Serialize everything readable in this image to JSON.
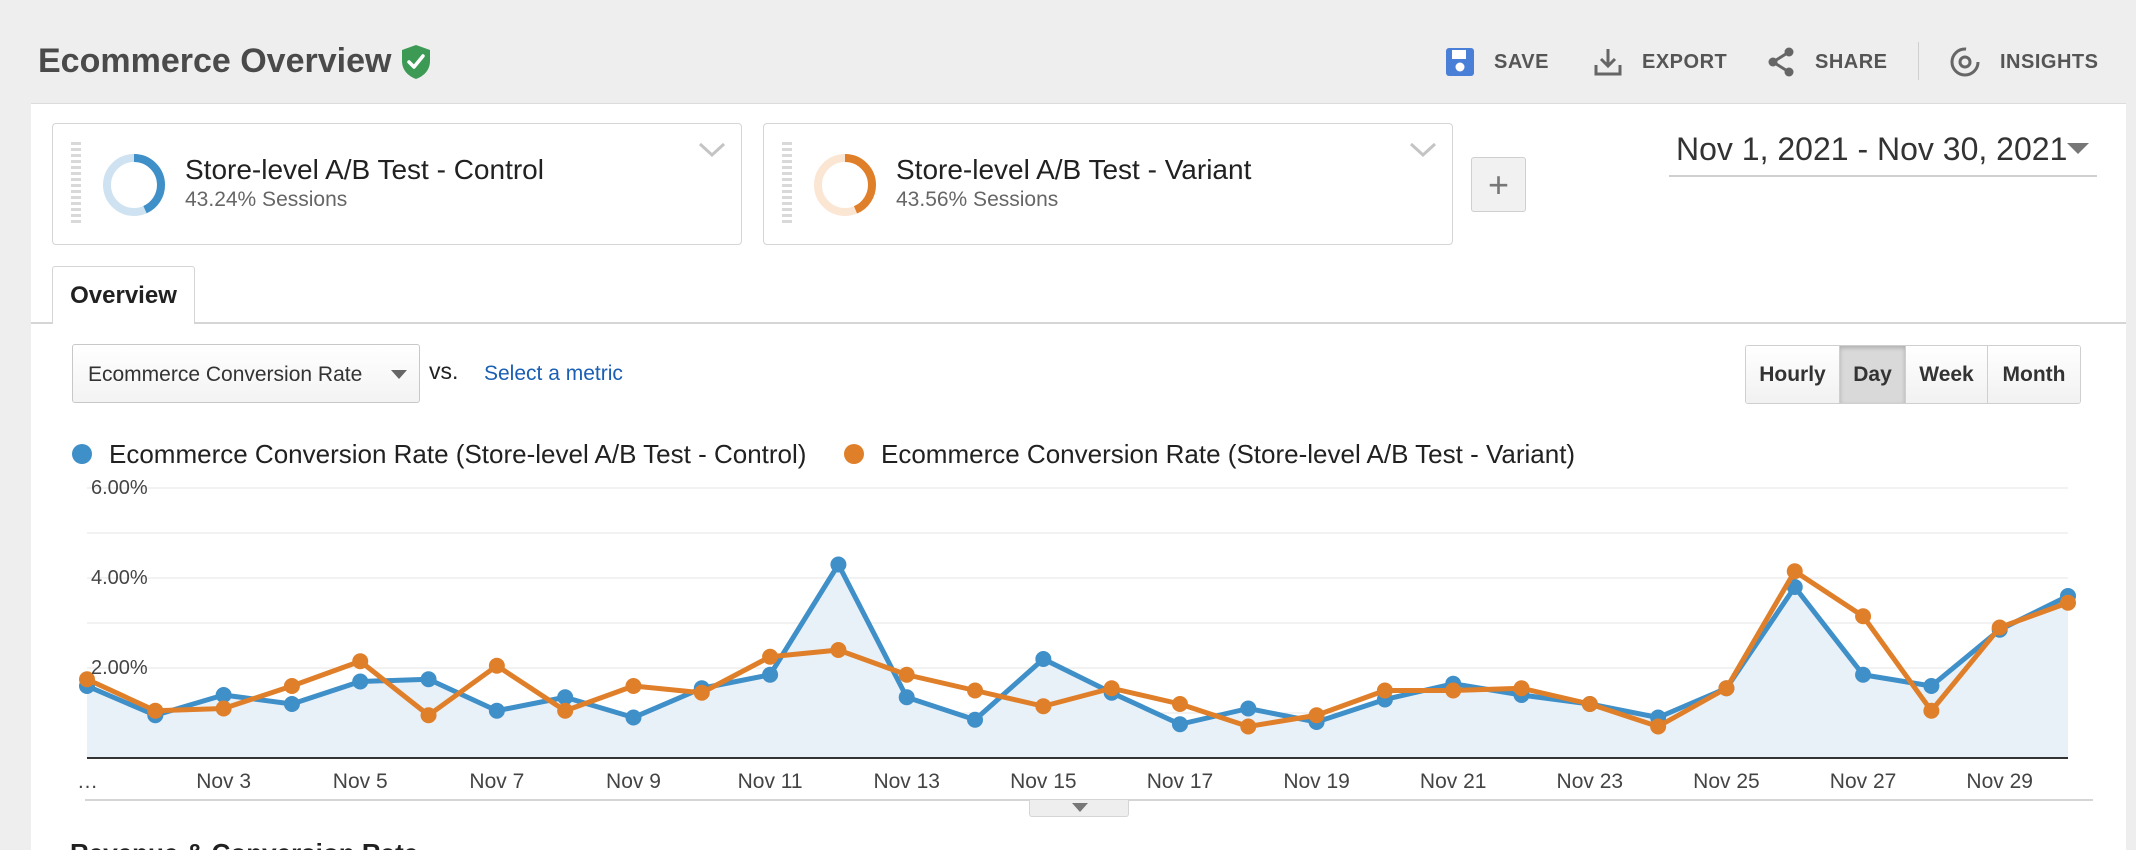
{
  "header": {
    "title": "Ecommerce Overview",
    "verified_icon": "shield-check-icon",
    "actions": [
      {
        "label": "SAVE",
        "icon": "save-icon"
      },
      {
        "label": "EXPORT",
        "icon": "download-icon"
      },
      {
        "label": "SHARE",
        "icon": "share-icon"
      },
      {
        "label": "INSIGHTS",
        "icon": "insights-icon"
      }
    ]
  },
  "segments": [
    {
      "name": "Store-level A/B Test - Control",
      "sessions": "43.24% Sessions",
      "color": "#3f8fc8",
      "share": 0.4324
    },
    {
      "name": "Store-level A/B Test - Variant",
      "sessions": "43.56% Sessions",
      "color": "#e07f2a",
      "share": 0.4356
    }
  ],
  "add_segment_label": "+",
  "date_range": "Nov 1, 2021 - Nov 30, 2021",
  "tabs": [
    "Overview"
  ],
  "metric": {
    "selected": "Ecommerce Conversion Rate",
    "vs_label": "vs.",
    "select_metric_link": "Select a metric"
  },
  "granularity": {
    "options": [
      "Hourly",
      "Day",
      "Week",
      "Month"
    ],
    "active": "Day"
  },
  "chart_data": {
    "type": "area",
    "x": [
      "Nov 1",
      "Nov 2",
      "Nov 3",
      "Nov 4",
      "Nov 5",
      "Nov 6",
      "Nov 7",
      "Nov 8",
      "Nov 9",
      "Nov 10",
      "Nov 11",
      "Nov 12",
      "Nov 13",
      "Nov 14",
      "Nov 15",
      "Nov 16",
      "Nov 17",
      "Nov 18",
      "Nov 19",
      "Nov 20",
      "Nov 21",
      "Nov 22",
      "Nov 23",
      "Nov 24",
      "Nov 25",
      "Nov 26",
      "Nov 27",
      "Nov 28",
      "Nov 29",
      "Nov 30"
    ],
    "x_tick_labels": [
      "…",
      "Nov 3",
      "Nov 5",
      "Nov 7",
      "Nov 9",
      "Nov 11",
      "Nov 13",
      "Nov 15",
      "Nov 17",
      "Nov 19",
      "Nov 21",
      "Nov 23",
      "Nov 25",
      "Nov 27",
      "Nov 29"
    ],
    "y_tick_labels": [
      "6.00%",
      "4.00%",
      "2.00%"
    ],
    "ylim": [
      0,
      6
    ],
    "y_unit": "%",
    "grid": true,
    "legend_position": "top-left",
    "series": [
      {
        "name": "Ecommerce Conversion Rate (Store-level A/B Test - Control)",
        "color": "#3f8fc8",
        "values": [
          1.6,
          0.95,
          1.4,
          1.2,
          1.7,
          1.75,
          1.05,
          1.35,
          0.9,
          1.55,
          1.85,
          4.3,
          1.35,
          0.85,
          2.2,
          1.45,
          0.75,
          1.1,
          0.8,
          1.3,
          1.65,
          1.4,
          1.2,
          0.9,
          1.55,
          3.8,
          1.85,
          1.6,
          2.85,
          3.6
        ]
      },
      {
        "name": "Ecommerce Conversion Rate (Store-level A/B Test - Variant)",
        "color": "#e07f2a",
        "values": [
          1.75,
          1.05,
          1.1,
          1.6,
          2.15,
          0.95,
          2.05,
          1.05,
          1.6,
          1.45,
          2.25,
          2.4,
          1.85,
          1.5,
          1.15,
          1.55,
          1.2,
          0.7,
          0.95,
          1.5,
          1.5,
          1.55,
          1.2,
          0.7,
          1.55,
          4.15,
          3.15,
          1.05,
          2.9,
          3.45
        ]
      }
    ]
  },
  "next_section_heading": "Revenue & Conversion Rate"
}
